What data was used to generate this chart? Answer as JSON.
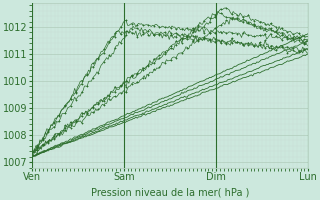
{
  "bg_color": "#cce8dd",
  "line_color": "#2d6e2d",
  "marker": "+",
  "xlabel": "Pression niveau de la mer( hPa )",
  "xlabel_color": "#2d6e2d",
  "grid_color_major": "#b0ccbb",
  "grid_color_minor": "#c8ddd4",
  "tick_color": "#2d6e2d",
  "ylim": [
    1006.8,
    1012.9
  ],
  "yticks": [
    1007,
    1008,
    1009,
    1010,
    1011,
    1012
  ],
  "xlim": [
    0,
    72
  ],
  "xtick_positions": [
    0,
    24,
    48,
    72
  ],
  "xtick_labels": [
    "Ven",
    "Sam",
    "Dim",
    "Lun"
  ],
  "label_fontsize": 7
}
